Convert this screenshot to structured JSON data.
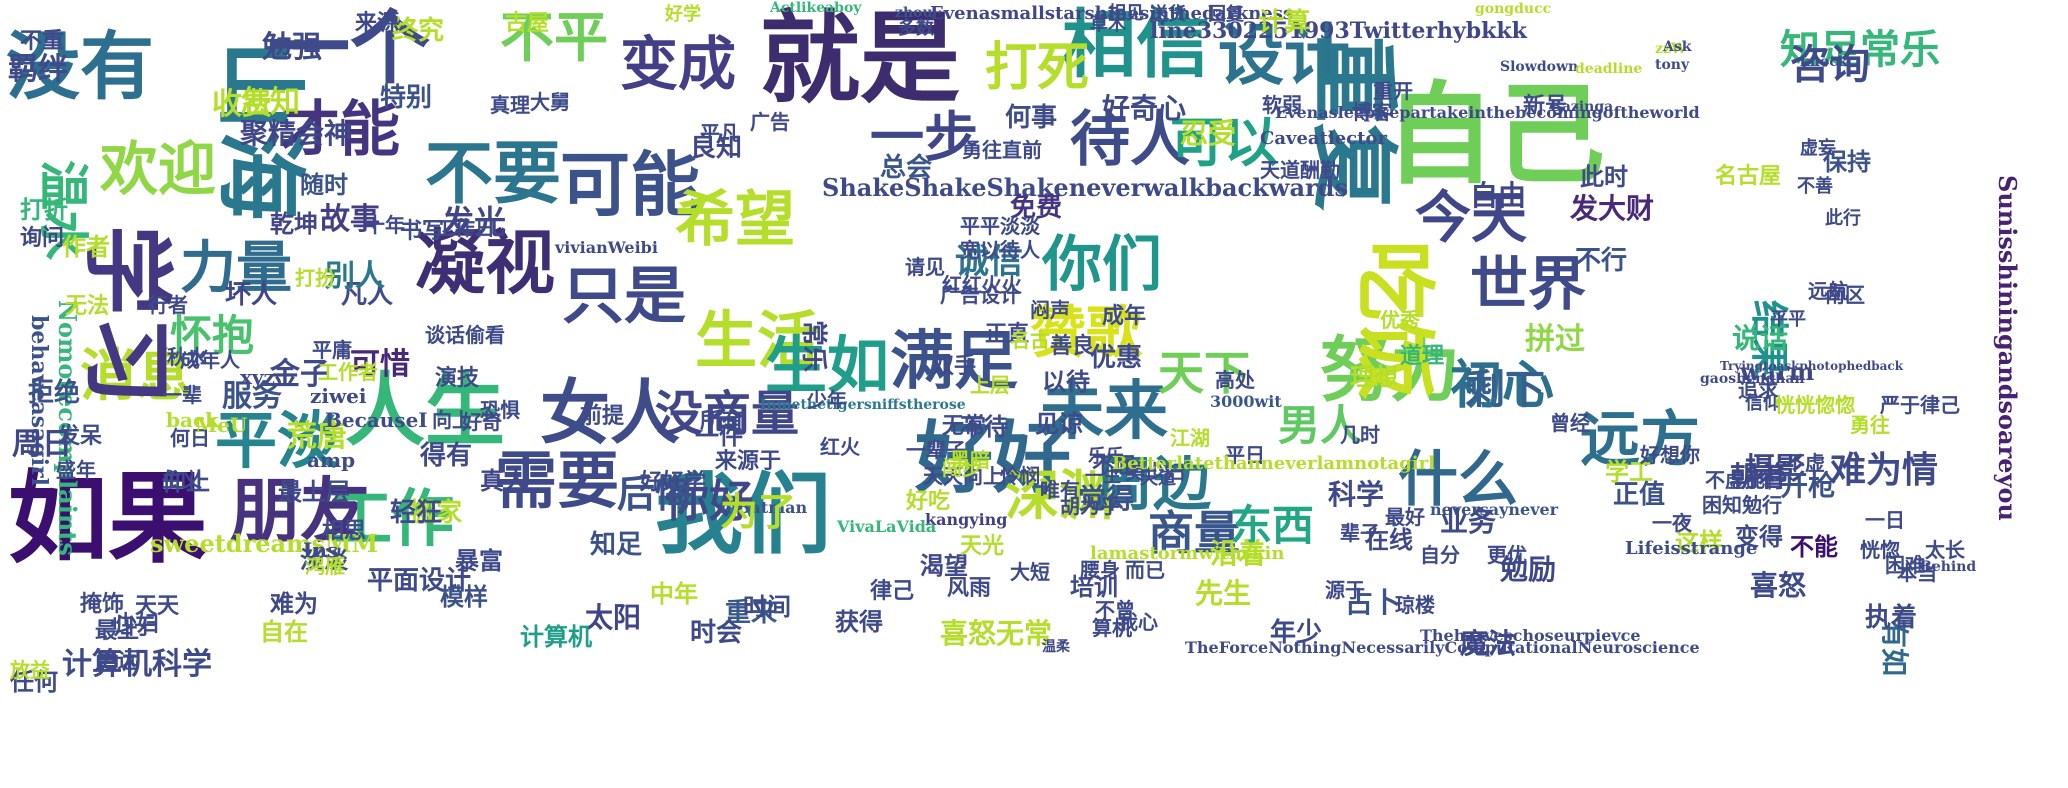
{
  "title": "",
  "words": [
    {
      "text": "如果",
      "color": "#3b0f70"
    },
    {
      "text": "自己",
      "color": "#6ece58"
    },
    {
      "text": "就是",
      "color": "#3e2d6e"
    },
    {
      "text": "一个",
      "color": "#3f4a8a"
    },
    {
      "text": "相信",
      "color": "#21918c"
    },
    {
      "text": "没有",
      "color": "#2d6f8e"
    },
    {
      "text": "我们",
      "color": "#26828e"
    },
    {
      "text": "人生",
      "color": "#35b779"
    },
    {
      "text": "女人",
      "color": "#3e4c8a"
    },
    {
      "text": "好好",
      "color": "#31688e"
    },
    {
      "text": "变成",
      "color": "#433e85"
    },
    {
      "text": "可能",
      "color": "#3b528b"
    },
    {
      "text": "努力",
      "color": "#6ece58"
    },
    {
      "text": "朋友",
      "color": "#46327e"
    },
    {
      "text": "需要",
      "color": "#3e4a89"
    },
    {
      "text": "设计",
      "color": "#2c738e"
    },
    {
      "text": "凝视",
      "color": "#3e2f74"
    },
    {
      "text": "不要",
      "color": "#2b758e"
    },
    {
      "text": "平淡",
      "color": "#25848e"
    },
    {
      "text": "生活",
      "color": "#b5de2b"
    },
    {
      "text": "希望",
      "color": "#b5de2b"
    },
    {
      "text": "工作",
      "color": "#35b779"
    },
    {
      "text": "满足",
      "color": "#3b528b"
    },
    {
      "text": "生如",
      "color": "#1f9e89"
    },
    {
      "text": "未来",
      "color": "#2e6e8e"
    },
    {
      "text": "什么",
      "color": "#31688e"
    },
    {
      "text": "远方",
      "color": "#2d708e"
    },
    {
      "text": "世界",
      "color": "#3e4a89"
    },
    {
      "text": "今天",
      "color": "#3f4788"
    },
    {
      "text": "深渊",
      "color": "#b5de2b"
    },
    {
      "text": "周边",
      "color": "#2a788e"
    },
    {
      "text": "你们",
      "color": "#1f968b"
    },
    {
      "text": "只是",
      "color": "#3e4a89"
    },
    {
      "text": "赞歌",
      "color": "#d8e219"
    },
    {
      "text": "消息",
      "color": "#b5de2b"
    },
    {
      "text": "力量",
      "color": "#2f6c8e"
    },
    {
      "text": "欢迎",
      "color": "#8fd744"
    },
    {
      "text": "才能",
      "color": "#453581"
    },
    {
      "text": "山海",
      "color": "#2a788e"
    },
    {
      "text": "学习",
      "color": "#453882"
    },
    {
      "text": "不平",
      "color": "#6ece58"
    },
    {
      "text": "待人",
      "color": "#3e4c8a"
    },
    {
      "text": "可以",
      "color": "#1fa187"
    },
    {
      "text": "一步",
      "color": "#3f4788"
    },
    {
      "text": "打死",
      "color": "#b5de2b"
    },
    {
      "text": "吃饭",
      "color": "#c8e020"
    },
    {
      "text": "重复",
      "color": "#2a788e"
    },
    {
      "text": "初心",
      "color": "#2d708e"
    },
    {
      "text": "商量",
      "color": "#39568c"
    },
    {
      "text": "天下",
      "color": "#6ece58"
    },
    {
      "text": "男人",
      "color": "#5ec962"
    },
    {
      "text": "东西",
      "color": "#22a785"
    },
    {
      "text": "怀抱",
      "color": "#4ac16d"
    },
    {
      "text": "你好",
      "color": "#3f4788"
    },
    {
      "text": "温水",
      "color": "#35b779"
    },
    {
      "text": "没商量",
      "color": "#404688"
    },
    {
      "text": "ShakeShakeShakeneverwalkbackwards",
      "color": "#3e4a89"
    },
    {
      "text": "sweetdreamsMM",
      "color": "#b5de2b"
    },
    {
      "text": "line3302251993Twitterhybkkk",
      "color": "#3f4788"
    },
    {
      "text": "Evenasmallstarshinesinthedarkness",
      "color": "#3f4788"
    },
    {
      "text": "Nomorecomplaints",
      "color": "#35b779"
    },
    {
      "text": "Sunisshiningandsoareyou",
      "color": "#482173"
    },
    {
      "text": "behaveasagirl",
      "color": "#3b528b"
    },
    {
      "text": "warm",
      "color": "#414487"
    },
    {
      "text": "vivianWeibi",
      "color": "#3e4989"
    },
    {
      "text": "Inmethetigersniffstherose",
      "color": "#2a788e"
    },
    {
      "text": "mBatman",
      "color": "#3b528b"
    },
    {
      "text": "kangying",
      "color": "#433e85"
    },
    {
      "text": "VivaLaVida",
      "color": "#35b779"
    },
    {
      "text": "neversaynever",
      "color": "#3b528b"
    },
    {
      "text": "3000wit",
      "color": "#39568c"
    },
    {
      "text": "Actlikeaboy",
      "color": "#35b779"
    },
    {
      "text": "zhou",
      "color": "#3b528b"
    },
    {
      "text": "gongducc",
      "color": "#b5de2b"
    },
    {
      "text": "知足常乐",
      "color": "#35b779"
    },
    {
      "text": "计算机科学",
      "color": "#3e4a89"
    },
    {
      "text": "故事",
      "color": "#433e85"
    },
    {
      "text": "发光",
      "color": "#414487"
    },
    {
      "text": "聚精会神",
      "color": "#3f4788"
    },
    {
      "text": "特别",
      "color": "#3b528b"
    },
    {
      "text": "书写",
      "color": "#3e4c8a"
    },
    {
      "text": "诚信",
      "color": "#2c738e"
    },
    {
      "text": "坏人",
      "color": "#3f4788"
    },
    {
      "text": "凡人",
      "color": "#3e4c8a"
    },
    {
      "text": "服务",
      "color": "#3b528b"
    },
    {
      "text": "可惜",
      "color": "#482878"
    },
    {
      "text": "金子",
      "color": "#3e4a89"
    },
    {
      "text": "拼过",
      "color": "#8fd744"
    },
    {
      "text": "搬家",
      "color": "#b5de2b"
    },
    {
      "text": "后悔",
      "color": "#3b528b"
    },
    {
      "text": "别人",
      "color": "#2a788e"
    },
    {
      "text": "总会",
      "color": "#39568c"
    },
    {
      "text": "免费",
      "color": "#453581"
    },
    {
      "text": "良知",
      "color": "#3f4788"
    },
    {
      "text": "剩下",
      "color": "#35608d"
    },
    {
      "text": "结果",
      "color": "#20928c"
    },
    {
      "text": "道理",
      "color": "#35b779"
    },
    {
      "text": "理想",
      "color": "#b5de2b"
    },
    {
      "text": "优惠",
      "color": "#3e4a89"
    },
    {
      "text": "知足",
      "color": "#3b528b"
    },
    {
      "text": "常乐",
      "color": "#3f4788"
    },
    {
      "text": "太阳",
      "color": "#414487"
    },
    {
      "text": "为了",
      "color": "#b5de2b"
    },
    {
      "text": "觉得",
      "color": "#3b528b"
    },
    {
      "text": "重来",
      "color": "#38598c"
    },
    {
      "text": "得有",
      "color": "#3e4a89"
    },
    {
      "text": "真人",
      "color": "#404688"
    },
    {
      "text": "荒唐",
      "color": "#b5de2b"
    },
    {
      "text": "周日",
      "color": "#3f4788"
    },
    {
      "text": "拒绝",
      "color": "#3b528b"
    },
    {
      "text": "任何",
      "color": "#3e4a89"
    },
    {
      "text": "计算机",
      "color": "#1f9e89"
    },
    {
      "text": "自由",
      "color": "#3f4788"
    },
    {
      "text": "发大财",
      "color": "#482878"
    },
    {
      "text": "不行",
      "color": "#3b528b"
    },
    {
      "text": "说话",
      "color": "#35b779"
    },
    {
      "text": "咨询",
      "color": "#3e4a89"
    },
    {
      "text": "乾坤",
      "color": "#414487"
    },
    {
      "text": "随时",
      "color": "#3b528b"
    },
    {
      "text": "作者",
      "color": "#b5de2b"
    },
    {
      "text": "收费",
      "color": "#b5de2b"
    },
    {
      "text": "怎知",
      "color": "#b5de2b"
    },
    {
      "text": "勉强",
      "color": "#3e4a89"
    },
    {
      "text": "羁绊",
      "color": "#3e4a89"
    },
    {
      "text": "打折",
      "color": "#35b779"
    },
    {
      "text": "询问",
      "color": "#3f4788"
    },
    {
      "text": "不重",
      "color": "#3e4a89"
    },
    {
      "text": "计算",
      "color": "#b5de2b"
    },
    {
      "text": "终究",
      "color": "#b5de2b"
    },
    {
      "text": "来源",
      "color": "#3e4a89"
    },
    {
      "text": "古屋",
      "color": "#b5de2b"
    },
    {
      "text": "何事",
      "color": "#3e4c8a"
    },
    {
      "text": "好奇心",
      "color": "#3e4a89"
    },
    {
      "text": "忍受",
      "color": "#b5de2b"
    },
    {
      "text": "此时",
      "color": "#3e4a89"
    },
    {
      "text": "保持",
      "color": "#3b528b"
    },
    {
      "text": "摄影",
      "color": "#404688"
    },
    {
      "text": "开枪",
      "color": "#3b528b"
    },
    {
      "text": "朝着",
      "color": "#3f4788"
    },
    {
      "text": "难为情",
      "color": "#3e4a89"
    },
    {
      "text": "正值",
      "color": "#3b528b"
    },
    {
      "text": "学工",
      "color": "#b5de2b"
    },
    {
      "text": "业务",
      "color": "#3e4a89"
    },
    {
      "text": "科学",
      "color": "#3e4a89"
    },
    {
      "text": "在线",
      "color": "#3f4788"
    },
    {
      "text": "这样",
      "color": "#b5de2b"
    },
    {
      "text": "变得",
      "color": "#3e4a89"
    },
    {
      "text": "不能",
      "color": "#3b0f70"
    },
    {
      "text": "有如",
      "color": "#31688e"
    },
    {
      "text": "执着",
      "color": "#3e4a89"
    },
    {
      "text": "喜怒",
      "color": "#3e4a89"
    },
    {
      "text": "勉励",
      "color": "#3f4788"
    },
    {
      "text": "占卜",
      "color": "#3b528b"
    },
    {
      "text": "先生",
      "color": "#b5de2b"
    },
    {
      "text": "沿着",
      "color": "#b5de2b"
    },
    {
      "text": "培训",
      "color": "#3e4a89"
    },
    {
      "text": "魔法",
      "color": "#3f4788"
    },
    {
      "text": "年少",
      "color": "#3e4a89"
    },
    {
      "text": "时会",
      "color": "#3e4a89"
    },
    {
      "text": "喜怒无常",
      "color": "#b5de2b"
    },
    {
      "text": "获得",
      "color": "#3e4a89"
    },
    {
      "text": "时间",
      "color": "#3e4a89"
    },
    {
      "text": "中年",
      "color": "#b5de2b"
    },
    {
      "text": "难为",
      "color": "#3e4a89"
    },
    {
      "text": "自在",
      "color": "#b5de2b"
    },
    {
      "text": "平面设计",
      "color": "#3e4a89"
    },
    {
      "text": "淡淡",
      "color": "#3e4a89"
    },
    {
      "text": "模样",
      "color": "#3b528b"
    },
    {
      "text": "暴富",
      "color": "#3e4a89"
    },
    {
      "text": "轻狂",
      "color": "#3e4a89"
    },
    {
      "text": "相思",
      "color": "#3e4a89"
    },
    {
      "text": "最上层",
      "color": "#3e4a89"
    },
    {
      "text": "仰止",
      "color": "#3e4a89"
    },
    {
      "text": "少妇",
      "color": "#3e4a89"
    },
    {
      "text": "更远",
      "color": "#3e4a89"
    },
    {
      "text": "天天",
      "color": "#3e4a89"
    },
    {
      "text": "归于",
      "color": "#3e4a89"
    },
    {
      "text": "放益",
      "color": "#b5de2b"
    },
    {
      "text": "掩饰",
      "color": "#3e4a89"
    },
    {
      "text": "最上",
      "color": "#3e4a89"
    },
    {
      "text": "发呆",
      "color": "#3e4a89"
    },
    {
      "text": "盛年",
      "color": "#3e4a89"
    },
    {
      "text": "无法",
      "color": "#b5de2b"
    },
    {
      "text": "成年人",
      "color": "#3e4a89"
    },
    {
      "text": "何日",
      "color": "#3e4a89"
    },
    {
      "text": "演技",
      "color": "#3e4a89"
    },
    {
      "text": "前提",
      "color": "#3e4a89"
    },
    {
      "text": "一件",
      "color": "#3e4a89"
    },
    {
      "text": "好好学",
      "color": "#3e4a89"
    },
    {
      "text": "所有",
      "color": "#3e4a89"
    },
    {
      "text": "来源于",
      "color": "#3e4a89"
    },
    {
      "text": "律己",
      "color": "#3e4a89"
    },
    {
      "text": "风雨",
      "color": "#3e4a89"
    },
    {
      "text": "渴望",
      "color": "#3e4a89"
    },
    {
      "text": "天光",
      "color": "#b5de2b"
    },
    {
      "text": "好吃",
      "color": "#b5de2b"
    },
    {
      "text": "不待",
      "color": "#3e4a89"
    },
    {
      "text": "以待",
      "color": "#3e4a89"
    },
    {
      "text": "见谅",
      "color": "#3e4a89"
    },
    {
      "text": "不屈",
      "color": "#3e4a89"
    },
    {
      "text": "无常",
      "color": "#3e4a89"
    },
    {
      "text": "一辈子",
      "color": "#3e4a89"
    },
    {
      "text": "黑暗",
      "color": "#b5de2b"
    },
    {
      "text": "红火",
      "color": "#3e4a89"
    },
    {
      "text": "少年",
      "color": "#3e4a89"
    },
    {
      "text": "闷声",
      "color": "#3e4a89"
    },
    {
      "text": "双手",
      "color": "#3e4a89"
    },
    {
      "text": "上层",
      "color": "#b5de2b"
    },
    {
      "text": "正直",
      "color": "#3e4a89"
    },
    {
      "text": "善良",
      "color": "#3e4a89"
    },
    {
      "text": "成年",
      "color": "#3e4a89"
    },
    {
      "text": "广告设计",
      "color": "#3e4a89"
    },
    {
      "text": "红红火火",
      "color": "#3e4a89"
    },
    {
      "text": "请见",
      "color": "#3e4a89"
    },
    {
      "text": "天道酬勤",
      "color": "#3e4a89"
    },
    {
      "text": "勇往直前",
      "color": "#3e4a89"
    },
    {
      "text": "平平淡淡",
      "color": "#3e4a89"
    },
    {
      "text": "宽以待人",
      "color": "#3e4a89"
    },
    {
      "text": "工作日",
      "color": "#3e4a89"
    },
    {
      "text": "十年",
      "color": "#3e4a89"
    },
    {
      "text": "打扮",
      "color": "#b5de2b"
    },
    {
      "text": "谈话偷看",
      "color": "#3e4a89"
    },
    {
      "text": "好奇",
      "color": "#3e4a89"
    },
    {
      "text": "向上",
      "color": "#3e4a89"
    },
    {
      "text": "恐惧",
      "color": "#3e4a89"
    },
    {
      "text": "相见",
      "color": "#3e4a89"
    },
    {
      "text": "多数",
      "color": "#3e4a89"
    },
    {
      "text": "平凡",
      "color": "#3e4a89"
    },
    {
      "text": "广告",
      "color": "#3e4a89"
    },
    {
      "text": "真理",
      "color": "#3e4a89"
    },
    {
      "text": "大舅",
      "color": "#3e4a89"
    },
    {
      "text": "好学",
      "color": "#b5de2b"
    },
    {
      "text": "草木",
      "color": "#3e4a89"
    },
    {
      "text": "送货",
      "color": "#3e4a89"
    },
    {
      "text": "回复",
      "color": "#3e4a89"
    },
    {
      "text": "博客",
      "color": "#3e4a89"
    },
    {
      "text": "重开",
      "color": "#3e4a89"
    },
    {
      "text": "新号",
      "color": "#3e4a89"
    },
    {
      "text": "名古屋",
      "color": "#b5de2b"
    },
    {
      "text": "虚妄",
      "color": "#3e4a89"
    },
    {
      "text": "不善",
      "color": "#3e4a89"
    },
    {
      "text": "此行",
      "color": "#3e4a89"
    },
    {
      "text": "远航",
      "color": "#3e4a89"
    },
    {
      "text": "南区",
      "color": "#3e4a89"
    },
    {
      "text": "平平",
      "color": "#3e4a89"
    },
    {
      "text": "追求",
      "color": "#3e4a89"
    },
    {
      "text": "信仰",
      "color": "#3e4a89"
    },
    {
      "text": "严于律己",
      "color": "#3e4a89"
    },
    {
      "text": "勇往",
      "color": "#b5de2b"
    },
    {
      "text": "一日",
      "color": "#3e4a89"
    },
    {
      "text": "本当",
      "color": "#3e4a89"
    },
    {
      "text": "困难",
      "color": "#3e4a89"
    },
    {
      "text": "太长",
      "color": "#3e4a89"
    },
    {
      "text": "恍惚",
      "color": "#3e4a89"
    },
    {
      "text": "恍恍惚惚",
      "color": "#b5de2b"
    },
    {
      "text": "困知勉行",
      "color": "#3e4a89"
    },
    {
      "text": "不虚",
      "color": "#3e4a89"
    },
    {
      "text": "不虚此行",
      "color": "#3e4a89"
    },
    {
      "text": "好想你",
      "color": "#3e4a89"
    },
    {
      "text": "曾经",
      "color": "#3e4a89"
    },
    {
      "text": "一夜",
      "color": "#3e4a89"
    },
    {
      "text": "更优",
      "color": "#3e4a89"
    },
    {
      "text": "自分",
      "color": "#3e4a89"
    },
    {
      "text": "琼楼",
      "color": "#3e4a89"
    },
    {
      "text": "源于",
      "color": "#3e4a89"
    },
    {
      "text": "最好",
      "color": "#3e4a89"
    },
    {
      "text": "辈子",
      "color": "#3e4a89"
    },
    {
      "text": "美少妇",
      "color": "#3e4a89"
    },
    {
      "text": "平日",
      "color": "#3e4a89"
    },
    {
      "text": "几时",
      "color": "#3e4a89"
    },
    {
      "text": "胡为乎",
      "color": "#3e4a89"
    },
    {
      "text": "唯有",
      "color": "#3e4a89"
    },
    {
      "text": "怜悯",
      "color": "#3e4a89"
    },
    {
      "text": "天天向上",
      "color": "#3e4a89"
    },
    {
      "text": "闯步",
      "color": "#b5de2b"
    },
    {
      "text": "鸿雁",
      "color": "#b5de2b"
    },
    {
      "text": "Ins",
      "color": "#3e4a89"
    },
    {
      "text": "amp",
      "color": "#3e4a89"
    },
    {
      "text": "MeU",
      "color": "#b5de2b"
    },
    {
      "text": "BecauseI",
      "color": "#3e4a89"
    },
    {
      "text": "ziwei",
      "color": "#3e4a89"
    },
    {
      "text": "xyz",
      "color": "#3e4a89"
    },
    {
      "text": "back",
      "color": "#b5de2b"
    },
    {
      "text": "主义",
      "color": "#3e4a89"
    },
    {
      "text": "一辈",
      "color": "#3e4a89"
    },
    {
      "text": "行者",
      "color": "#3e4a89"
    },
    {
      "text": "秋水",
      "color": "#3e4a89"
    },
    {
      "text": "工作者",
      "color": "#b5de2b"
    },
    {
      "text": "平庸",
      "color": "#3e4a89"
    },
    {
      "text": "大短",
      "color": "#3e4a89"
    },
    {
      "text": "腰身",
      "color": "#3e4a89"
    },
    {
      "text": "温柔",
      "color": "#3e4a89"
    },
    {
      "text": "而已",
      "color": "#3e4a89"
    },
    {
      "text": "不曾",
      "color": "#3e4a89"
    },
    {
      "text": "算机",
      "color": "#3e4a89"
    },
    {
      "text": "我心",
      "color": "#3e4a89"
    },
    {
      "text": "江湖",
      "color": "#b5de2b"
    },
    {
      "text": "优秀",
      "color": "#b5de2b"
    },
    {
      "text": "高处",
      "color": "#3e4a89"
    },
    {
      "text": "名古",
      "color": "#b5de2b"
    },
    {
      "text": "软弱",
      "color": "#3e4a89"
    },
    {
      "text": "天道",
      "color": "#3e4a89"
    },
    {
      "text": "乐乐",
      "color": "#3e4a89"
    },
    {
      "text": "一生",
      "color": "#3e4a89"
    },
    {
      "text": "Betterlatethanneverlamnotagirl",
      "color": "#b5de2b"
    },
    {
      "text": "lamastormwithskin",
      "color": "#b5de2b"
    },
    {
      "text": "Caveatlector",
      "color": "#3e4a89"
    },
    {
      "text": "Evenasleepwepartakeinthebecomingoftheworld",
      "color": "#3e4a89"
    },
    {
      "text": "Lifeisstrange",
      "color": "#3e4a89"
    },
    {
      "text": "TheForceNothingNecessarilyComputationalNeuroscience",
      "color": "#3e4a89"
    },
    {
      "text": "Theharveschoseurpievce",
      "color": "#3e4a89"
    },
    {
      "text": "Tryingtoaskphotophedback",
      "color": "#3e4a89"
    },
    {
      "text": "gaoshenghan",
      "color": "#3e4a89"
    },
    {
      "text": "Bazinga",
      "color": "#3e4a89"
    },
    {
      "text": "Slowdown",
      "color": "#3e4a89"
    },
    {
      "text": "zzW",
      "color": "#b5de2b"
    },
    {
      "text": "Ask",
      "color": "#3e4a89"
    },
    {
      "text": "knock",
      "color": "#3e4a89"
    },
    {
      "text": "tony",
      "color": "#3e4a89"
    },
    {
      "text": "deadline",
      "color": "#b5de2b"
    },
    {
      "text": "Behind",
      "color": "#3e4a89"
    }
  ]
}
